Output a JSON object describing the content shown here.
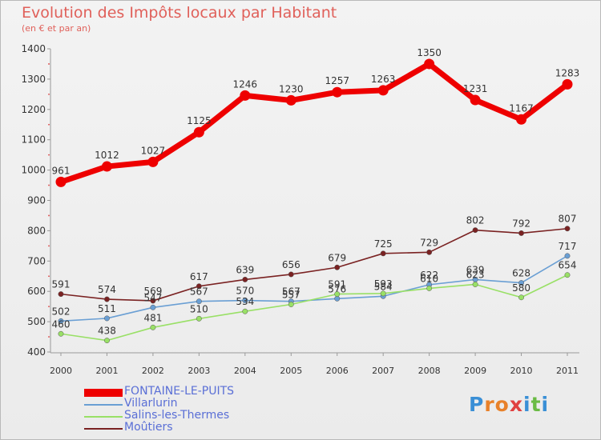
{
  "header": {
    "title": "Evolution des Impôts locaux par Habitant",
    "subtitle": "(en € et par an)"
  },
  "logo": {
    "text": "Proxiti",
    "letters": [
      "P",
      "r",
      "o",
      "x",
      "i",
      "t",
      "i"
    ],
    "colors": [
      "#3a8fd6",
      "#e8812a",
      "#e8812a",
      "#e04040",
      "#3a8fd6",
      "#6abb44",
      "#3a8fd6"
    ]
  },
  "chart_data": {
    "type": "line",
    "title": "Evolution des Impôts locaux par Habitant",
    "subtitle": "(en € et par an)",
    "xlabel": "",
    "ylabel": "",
    "x": [
      "2000",
      "2001",
      "2002",
      "2003",
      "2004",
      "2005",
      "2006",
      "2007",
      "2008",
      "2009",
      "2010",
      "2011"
    ],
    "ylim": [
      400,
      1400
    ],
    "yticks": [
      "400",
      "500",
      "600",
      "700",
      "800",
      "900",
      "1000",
      "1100",
      "1200",
      "1300",
      "1400"
    ],
    "grid": false,
    "legend_position": "bottom-left",
    "series": [
      {
        "name": "FONTAINE-LE-PUITS",
        "color": "#ee0000",
        "values": [
          961,
          1012,
          1027,
          1125,
          1246,
          1230,
          1257,
          1263,
          1350,
          1231,
          1167,
          1283
        ]
      },
      {
        "name": "Villarlurin",
        "color": "#6a9fd4",
        "values": [
          502,
          511,
          547,
          567,
          570,
          567,
          576,
          584,
          622,
          639,
          628,
          717
        ]
      },
      {
        "name": "Salins-les-Thermes",
        "color": "#99e066",
        "values": [
          460,
          438,
          481,
          510,
          534,
          557,
          591,
          593,
          610,
          623,
          580,
          654
        ]
      },
      {
        "name": "Moûtiers",
        "color": "#7a2222",
        "values": [
          591,
          574,
          569,
          617,
          639,
          656,
          679,
          725,
          729,
          802,
          792,
          807
        ]
      }
    ]
  }
}
